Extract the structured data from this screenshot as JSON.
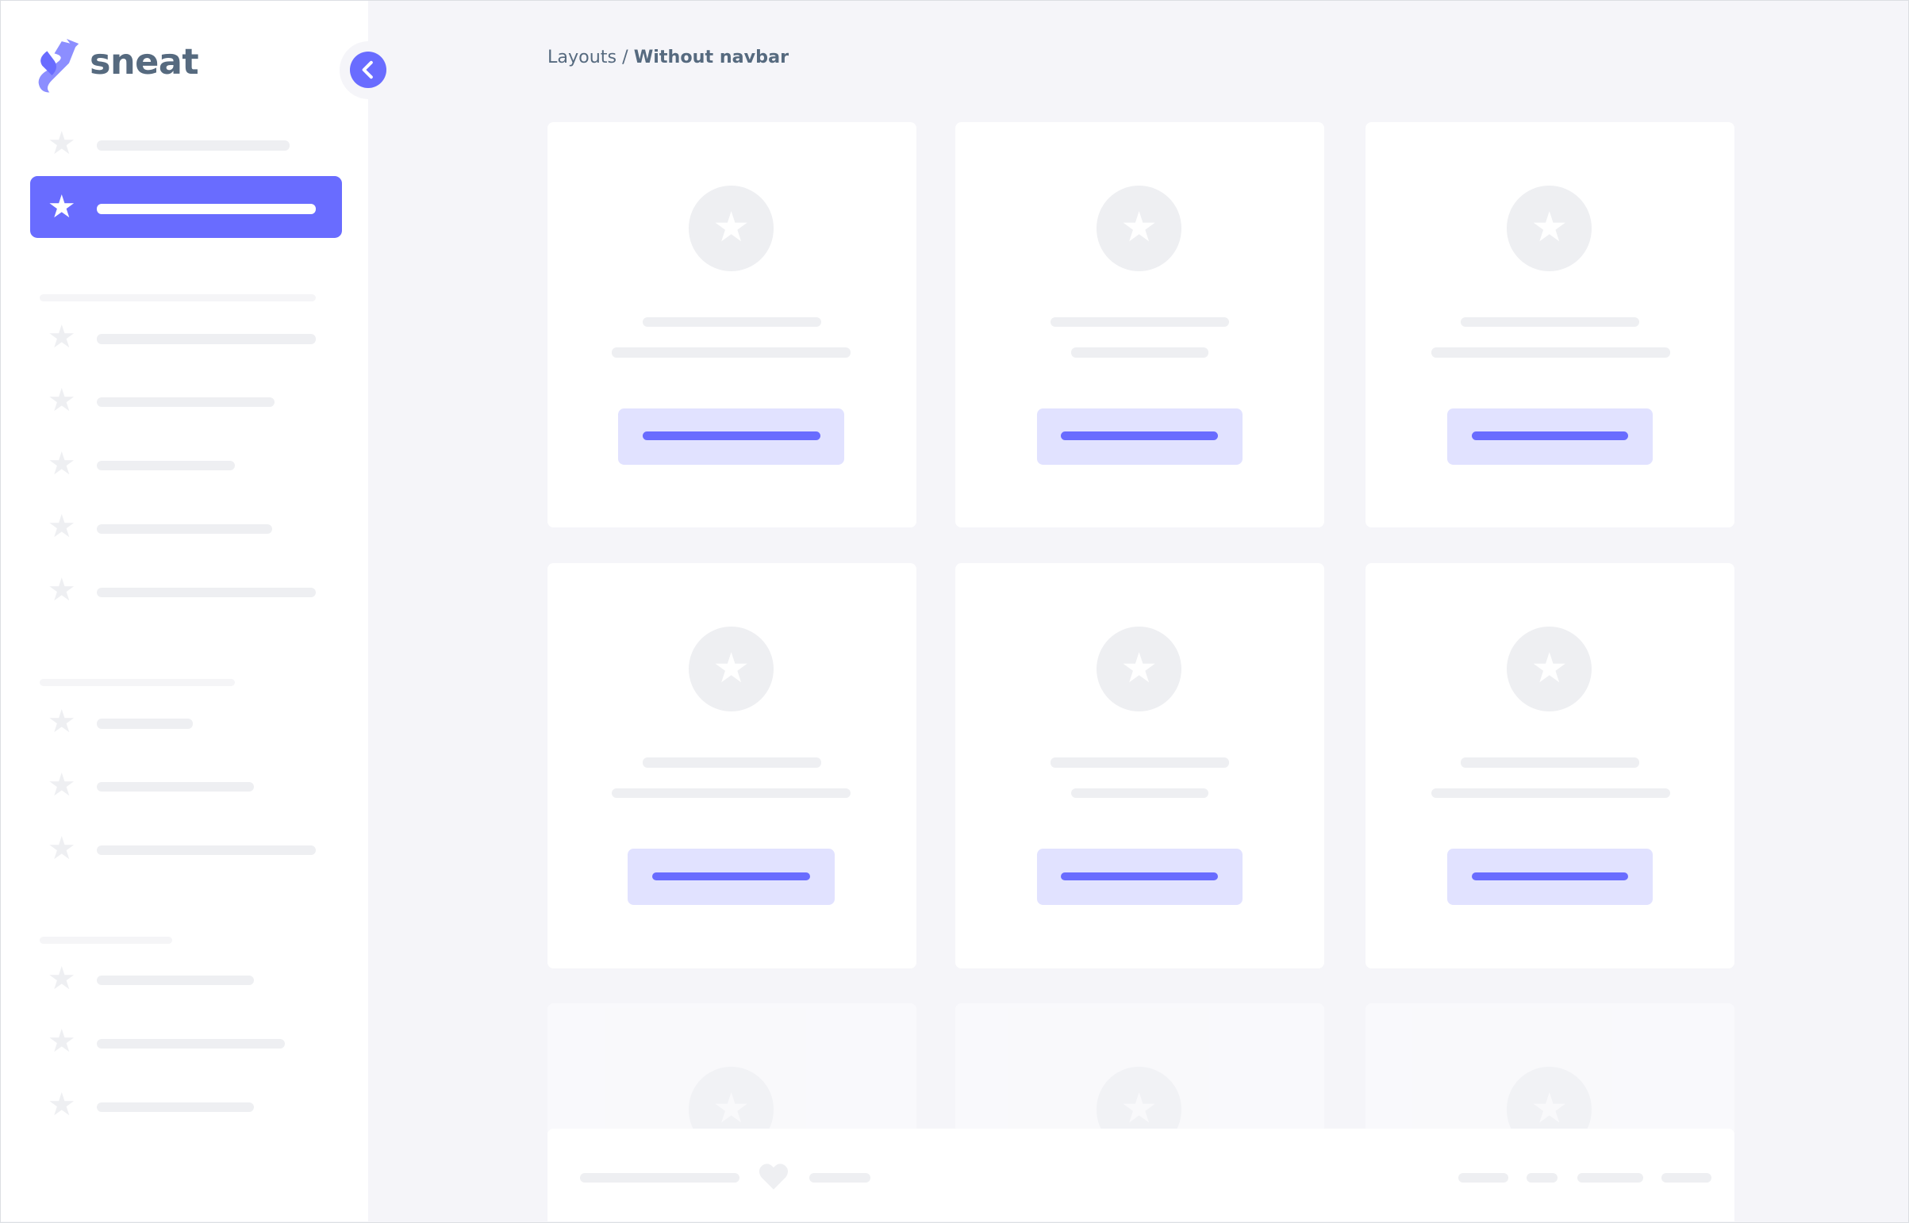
{
  "brand": {
    "name": "sneat",
    "color": "#696cff",
    "text_color": "#566a7f"
  },
  "breadcrumb": {
    "parent": "Layouts",
    "separator": " / ",
    "current": "Without navbar"
  },
  "sidebar": {
    "toggle_icon": "chevron-left-icon",
    "item_icon": "star-icon",
    "active_index": 1
  },
  "footer": {
    "icon": "heart-icon"
  },
  "colors": {
    "accent": "#696cff",
    "accent_light": "#e1e2ff",
    "background": "#f5f5f9",
    "skeleton": "#eeeff2"
  }
}
